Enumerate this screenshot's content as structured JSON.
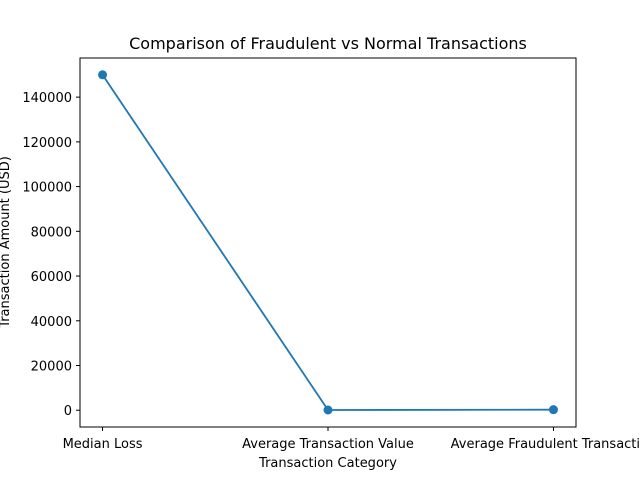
{
  "chart_data": {
    "type": "line",
    "title": "Comparison of Fraudulent vs Normal Transactions",
    "xlabel": "Transaction Category",
    "ylabel": "Transaction Amount (USD)",
    "categories": [
      "Median Loss",
      "Average Transaction Value",
      "Average Fraudulent Transaction"
    ],
    "series": [
      {
        "values": [
          150000,
          100,
          250
        ],
        "color": "#1f77b4"
      }
    ],
    "ylim": [
      -7500,
      157500
    ],
    "yticks": [
      0,
      20000,
      40000,
      60000,
      80000,
      100000,
      120000,
      140000
    ],
    "grid": false,
    "legend": "none"
  }
}
